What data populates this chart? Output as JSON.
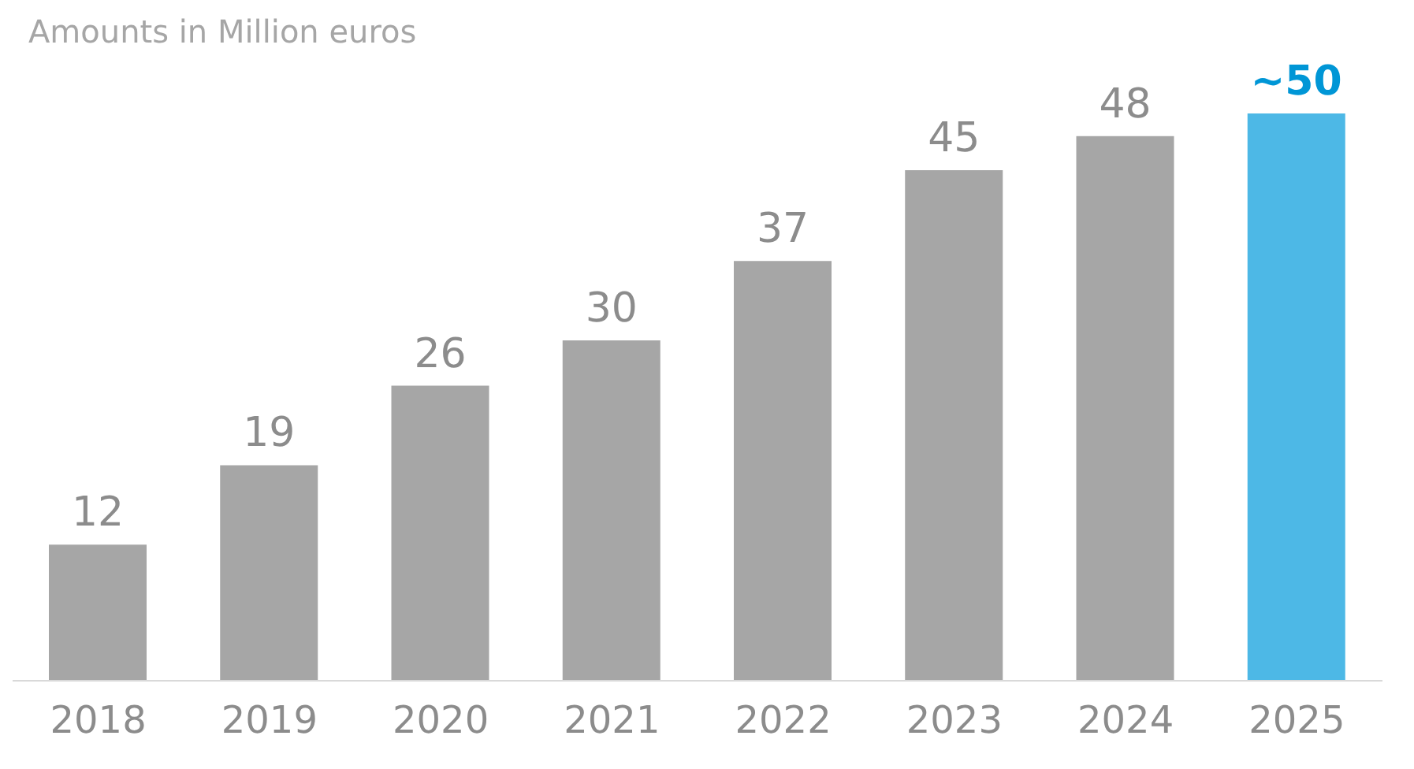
{
  "chart_data": {
    "type": "bar",
    "subtitle": "Amounts in Million euros",
    "categories": [
      "2018",
      "2019",
      "2020",
      "2021",
      "2022",
      "2023",
      "2024",
      "2025"
    ],
    "values": [
      12,
      19,
      26,
      30,
      37,
      45,
      48,
      50
    ],
    "colors": [
      "#a6a6a6",
      "#a6a6a6",
      "#a6a6a6",
      "#a6a6a6",
      "#a6a6a6",
      "#a6a6a6",
      "#a6a6a6",
      "#4db8e6"
    ],
    "value_labels": [
      "12",
      "19",
      "26",
      "30",
      "37",
      "45",
      "48",
      "~50"
    ],
    "data_labels": false
  }
}
